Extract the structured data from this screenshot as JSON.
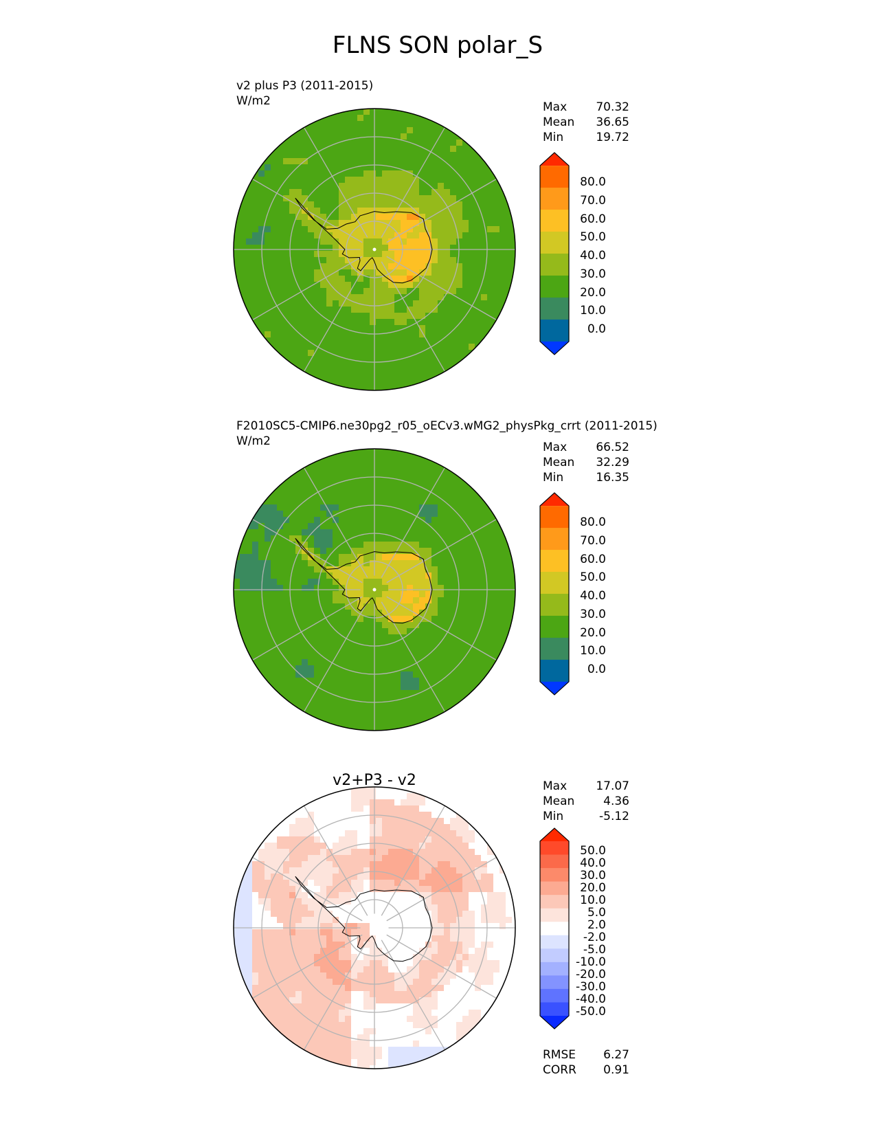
{
  "figure": {
    "title": "FLNS SON polar_S"
  },
  "chart_data": [
    {
      "type": "heatmap",
      "projection": "south-polar-stereographic",
      "title": "v2 plus P3 (2011-2015)",
      "units": "W/m2",
      "stats": [
        {
          "label": "Max",
          "value": "70.32"
        },
        {
          "label": "Mean",
          "value": "36.65"
        },
        {
          "label": "Min",
          "value": "19.72"
        }
      ],
      "colorbar": {
        "tick_labels": [
          "80.0",
          "70.0",
          "60.0",
          "50.0",
          "40.0",
          "30.0",
          "20.0",
          "10.0",
          "0.0"
        ],
        "colors": [
          "#ff2a00",
          "#ff6a00",
          "#ff9a1a",
          "#fdc024",
          "#d2c824",
          "#95ba1b",
          "#4ca614",
          "#3a8a5e",
          "#00689e",
          "#0038ff"
        ],
        "extend": "both"
      },
      "field": {
        "ocean_near": 36,
        "ocean_mid": 31,
        "ocean_far": 27,
        "land_base": 45,
        "land_east": 53,
        "coast_max": 70,
        "low_patches": []
      }
    },
    {
      "type": "heatmap",
      "projection": "south-polar-stereographic",
      "title": "F2010SC5-CMIP6.ne30pg2_r05_oECv3.wMG2_physPkg_crrt (2011-2015)",
      "units": "W/m2",
      "stats": [
        {
          "label": "Max",
          "value": "66.52"
        },
        {
          "label": "Mean",
          "value": "32.29"
        },
        {
          "label": "Min",
          "value": "16.35"
        }
      ],
      "colorbar": {
        "tick_labels": [
          "80.0",
          "70.0",
          "60.0",
          "50.0",
          "40.0",
          "30.0",
          "20.0",
          "10.0",
          "0.0"
        ],
        "colors": [
          "#ff2a00",
          "#ff6a00",
          "#ff9a1a",
          "#fdc024",
          "#d2c824",
          "#95ba1b",
          "#4ca614",
          "#3a8a5e",
          "#00689e",
          "#0038ff"
        ],
        "extend": "both"
      },
      "field": {
        "ocean_near": 31,
        "ocean_mid": 26,
        "ocean_far": 24,
        "land_base": 43,
        "land_east": 51,
        "coast_max": 66,
        "low_patches": [
          {
            "lon_deg": 35,
            "colat_deg": 27,
            "value": 18
          },
          {
            "lon_deg": 160,
            "colat_deg": 28,
            "value": 18
          },
          {
            "lon_deg": -140,
            "colat_deg": 30,
            "value": 18
          }
        ]
      }
    },
    {
      "type": "heatmap",
      "projection": "south-polar-stereographic",
      "title": "v2+P3 - v2",
      "units": "",
      "stats": [
        {
          "label": "Max",
          "value": "17.07"
        },
        {
          "label": "Mean",
          "value": "4.36"
        },
        {
          "label": "Min",
          "value": "-5.12"
        }
      ],
      "colorbar": {
        "tick_labels": [
          "50.0",
          "40.0",
          "30.0",
          "20.0",
          "10.0",
          "5.0",
          "2.0",
          "-2.0",
          "-5.0",
          "-10.0",
          "-20.0",
          "-30.0",
          "-40.0",
          "-50.0"
        ],
        "colors": [
          "#ff2a00",
          "#ff4a2a",
          "#fb6a4a",
          "#fc8a6a",
          "#fcaa92",
          "#fcc8b8",
          "#fde4dc",
          "#ffffff",
          "#dde4ff",
          "#c2ccff",
          "#a3b1ff",
          "#8393ff",
          "#5f73ff",
          "#3a52ff",
          "#0a2aff"
        ],
        "extend": "both"
      },
      "stats_bottom": [
        {
          "label": "RMSE",
          "value": "6.27"
        },
        {
          "label": "CORR",
          "value": "0.91"
        }
      ]
    }
  ]
}
